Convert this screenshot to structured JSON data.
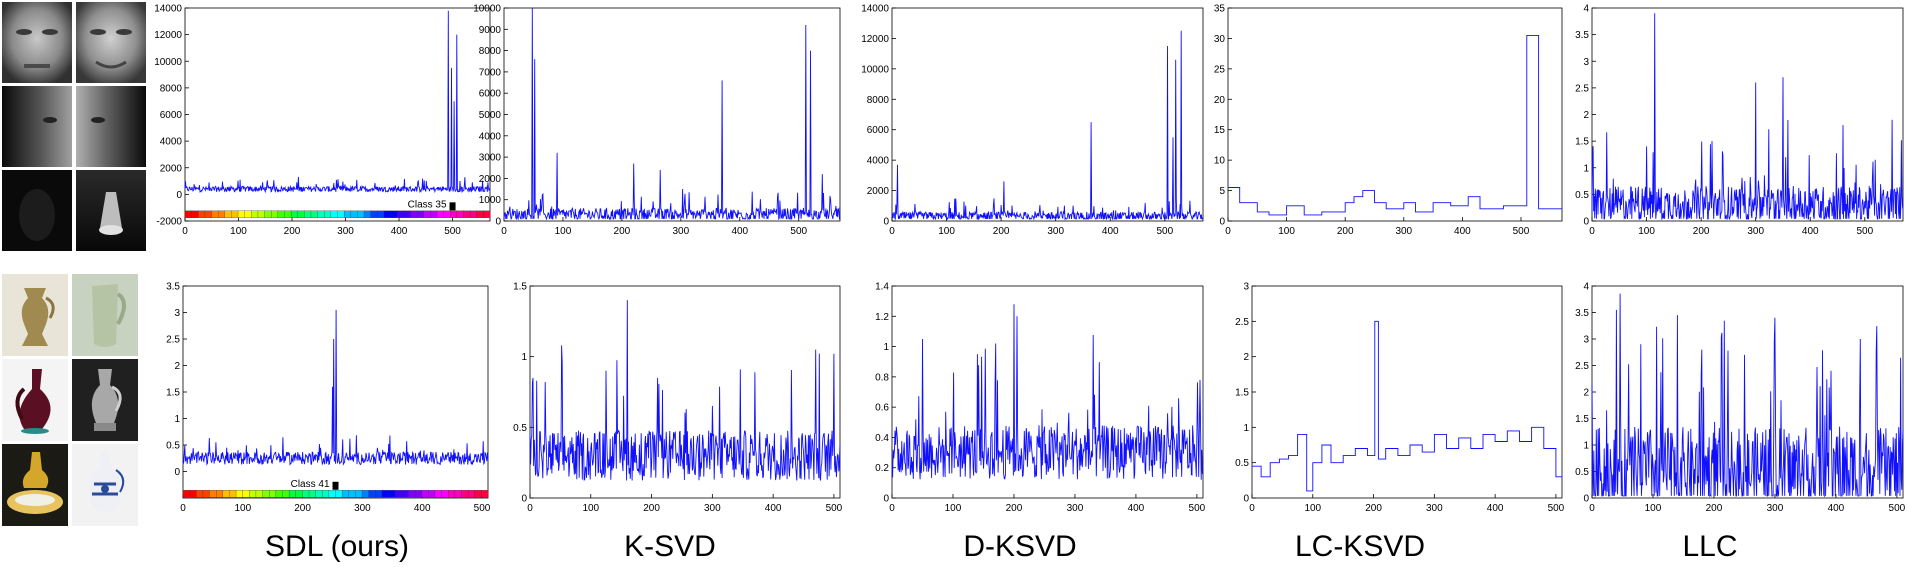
{
  "methods": [
    "SDL (ours)",
    "K-SVD",
    "D-KSVD",
    "LC-KSVD",
    "LLC"
  ],
  "chart_data": [
    {
      "type": "line",
      "row": "faces",
      "method": "SDL (ours)",
      "xlim": [
        0,
        570
      ],
      "ylim": [
        -2000,
        14000
      ],
      "yticks": [
        -2000,
        0,
        2000,
        4000,
        6000,
        8000,
        10000,
        12000,
        14000
      ],
      "ytick_labels": [
        "-2000",
        "0",
        "2000",
        "4000",
        "6000",
        "8000",
        "10000",
        "12000",
        "14000"
      ],
      "xticks": [
        0,
        100,
        200,
        300,
        400,
        500
      ],
      "xtick_labels": [
        "0",
        "100",
        "200",
        "300",
        "400",
        "500"
      ],
      "baseline": 400,
      "noise": 350,
      "spikes": [
        [
          492,
          13800
        ],
        [
          498,
          9500
        ],
        [
          508,
          12000
        ],
        [
          503,
          7000
        ]
      ],
      "colorbar": true,
      "class_label": "Class 35",
      "class_x": 500
    },
    {
      "type": "line",
      "row": "faces",
      "method": "K-SVD",
      "xlim": [
        0,
        570
      ],
      "ylim": [
        0,
        10000
      ],
      "yticks": [
        0,
        1000,
        2000,
        3000,
        4000,
        5000,
        6000,
        7000,
        8000,
        9000,
        10000
      ],
      "ytick_labels": [
        "0",
        "1000",
        "2000",
        "3000",
        "4000",
        "5000",
        "6000",
        "7000",
        "8000",
        "9000",
        "10000"
      ],
      "xticks": [
        0,
        100,
        200,
        300,
        400,
        500
      ],
      "xtick_labels": [
        "0",
        "100",
        "200",
        "300",
        "400",
        "500"
      ],
      "baseline": 300,
      "noise": 500,
      "spikes": [
        [
          48,
          10000
        ],
        [
          52,
          7600
        ],
        [
          90,
          3200
        ],
        [
          220,
          2700
        ],
        [
          265,
          2400
        ],
        [
          370,
          6600
        ],
        [
          512,
          9200
        ],
        [
          520,
          8000
        ],
        [
          540,
          2200
        ]
      ]
    },
    {
      "type": "line",
      "row": "faces",
      "method": "D-KSVD",
      "xlim": [
        0,
        570
      ],
      "ylim": [
        0,
        14000
      ],
      "yticks": [
        0,
        2000,
        4000,
        6000,
        8000,
        10000,
        12000,
        14000
      ],
      "ytick_labels": [
        "0",
        "2000",
        "4000",
        "6000",
        "8000",
        "10000",
        "12000",
        "14000"
      ],
      "xticks": [
        0,
        100,
        200,
        300,
        400,
        500
      ],
      "xtick_labels": [
        "0",
        "100",
        "200",
        "300",
        "400",
        "500"
      ],
      "baseline": 300,
      "noise": 500,
      "spikes": [
        [
          10,
          3700
        ],
        [
          205,
          2600
        ],
        [
          365,
          6500
        ],
        [
          505,
          11500
        ],
        [
          515,
          5500
        ],
        [
          520,
          10600
        ],
        [
          530,
          12500
        ]
      ]
    },
    {
      "type": "step",
      "row": "faces",
      "method": "LC-KSVD",
      "xlim": [
        0,
        570
      ],
      "ylim": [
        0,
        35
      ],
      "yticks": [
        0,
        5,
        10,
        15,
        20,
        25,
        30,
        35
      ],
      "ytick_labels": [
        "0",
        "5",
        "10",
        "15",
        "20",
        "25",
        "30",
        "35"
      ],
      "xticks": [
        0,
        100,
        200,
        300,
        400,
        500
      ],
      "xtick_labels": [
        "0",
        "100",
        "200",
        "300",
        "400",
        "500"
      ],
      "steps": [
        [
          0,
          5.5
        ],
        [
          20,
          3
        ],
        [
          50,
          1.5
        ],
        [
          70,
          1
        ],
        [
          100,
          2.5
        ],
        [
          130,
          1
        ],
        [
          160,
          1.5
        ],
        [
          200,
          3
        ],
        [
          215,
          4
        ],
        [
          230,
          5
        ],
        [
          250,
          3
        ],
        [
          270,
          2
        ],
        [
          300,
          3
        ],
        [
          320,
          1.5
        ],
        [
          350,
          3
        ],
        [
          380,
          2.5
        ],
        [
          410,
          4
        ],
        [
          430,
          2
        ],
        [
          470,
          2.5
        ],
        [
          510,
          30.5
        ],
        [
          530,
          2
        ],
        [
          570,
          2
        ]
      ]
    },
    {
      "type": "line",
      "row": "faces",
      "method": "LLC",
      "xlim": [
        0,
        570
      ],
      "ylim": [
        0,
        4
      ],
      "yticks": [
        0,
        0.5,
        1,
        1.5,
        2,
        2.5,
        3,
        3.5,
        4
      ],
      "ytick_labels": [
        "0",
        "0.5",
        "1",
        "1.5",
        "2",
        "2.5",
        "3",
        "3.5",
        "4"
      ],
      "xticks": [
        0,
        100,
        200,
        300,
        400,
        500
      ],
      "xtick_labels": [
        "0",
        "100",
        "200",
        "300",
        "400",
        "500"
      ],
      "baseline": 0.3,
      "noise": 0.6,
      "spikes": [
        [
          115,
          3.9
        ],
        [
          100,
          1.4
        ],
        [
          300,
          2.6
        ],
        [
          350,
          2.7
        ],
        [
          460,
          1.8
        ],
        [
          550,
          1.9
        ],
        [
          220,
          1.5
        ]
      ]
    },
    {
      "type": "line",
      "row": "vases",
      "method": "SDL (ours)",
      "xlim": [
        0,
        510
      ],
      "ylim": [
        -0.5,
        3.5
      ],
      "yticks": [
        0,
        0.5,
        1,
        1.5,
        2,
        2.5,
        3,
        3.5
      ],
      "ytick_labels": [
        "0",
        "0.5",
        "1",
        "1.5",
        "2",
        "2.5",
        "3",
        "3.5"
      ],
      "xticks": [
        0,
        100,
        200,
        300,
        400,
        500
      ],
      "xtick_labels": [
        "0",
        "100",
        "200",
        "300",
        "400",
        "500"
      ],
      "baseline": 0.25,
      "noise": 0.2,
      "spikes": [
        [
          252,
          2.5
        ],
        [
          256,
          3.05
        ],
        [
          250,
          1.6
        ]
      ],
      "colorbar": true,
      "class_label": "Class 41",
      "class_x": 255
    },
    {
      "type": "line",
      "row": "vases",
      "method": "K-SVD",
      "xlim": [
        0,
        510
      ],
      "ylim": [
        0,
        1.5
      ],
      "yticks": [
        0,
        0.5,
        1,
        1.5
      ],
      "ytick_labels": [
        "0",
        "0.5",
        "1",
        "1.5"
      ],
      "xticks": [
        0,
        100,
        200,
        300,
        400,
        500
      ],
      "xtick_labels": [
        "0",
        "100",
        "200",
        "300",
        "400",
        "500"
      ],
      "baseline": 0.3,
      "noise": 0.3,
      "spikes": [
        [
          160,
          1.4
        ],
        [
          125,
          0.9
        ],
        [
          210,
          0.85
        ],
        [
          470,
          1.05
        ],
        [
          500,
          1.02
        ],
        [
          5,
          0.85
        ]
      ]
    },
    {
      "type": "line",
      "row": "vases",
      "method": "D-KSVD",
      "xlim": [
        0,
        510
      ],
      "ylim": [
        0,
        1.4
      ],
      "yticks": [
        0,
        0.2,
        0.4,
        0.6,
        0.8,
        1,
        1.2,
        1.4
      ],
      "ytick_labels": [
        "0",
        "0.2",
        "0.4",
        "0.6",
        "0.8",
        "1",
        "1.2",
        "1.4"
      ],
      "xticks": [
        0,
        100,
        200,
        300,
        400,
        500
      ],
      "xtick_labels": [
        "0",
        "100",
        "200",
        "300",
        "400",
        "500"
      ],
      "baseline": 0.3,
      "noise": 0.3,
      "spikes": [
        [
          200,
          1.28
        ],
        [
          205,
          1.2
        ],
        [
          170,
          1.02
        ],
        [
          50,
          1.05
        ],
        [
          140,
          0.95
        ],
        [
          505,
          0.78
        ]
      ]
    },
    {
      "type": "step",
      "row": "vases",
      "method": "LC-KSVD",
      "xlim": [
        0,
        510
      ],
      "ylim": [
        0,
        3
      ],
      "yticks": [
        0,
        0.5,
        1,
        1.5,
        2,
        2.5,
        3
      ],
      "ytick_labels": [
        "0",
        "0.5",
        "1",
        "1.5",
        "2",
        "2.5",
        "3"
      ],
      "xticks": [
        0,
        100,
        200,
        300,
        400,
        500
      ],
      "xtick_labels": [
        "0",
        "100",
        "200",
        "300",
        "400",
        "500"
      ],
      "steps": [
        [
          0,
          0.45
        ],
        [
          15,
          0.3
        ],
        [
          30,
          0.5
        ],
        [
          45,
          0.55
        ],
        [
          60,
          0.6
        ],
        [
          75,
          0.9
        ],
        [
          90,
          0.1
        ],
        [
          100,
          0.5
        ],
        [
          115,
          0.75
        ],
        [
          130,
          0.5
        ],
        [
          150,
          0.6
        ],
        [
          170,
          0.7
        ],
        [
          190,
          0.6
        ],
        [
          202,
          2.5
        ],
        [
          208,
          0.55
        ],
        [
          220,
          0.7
        ],
        [
          240,
          0.6
        ],
        [
          260,
          0.75
        ],
        [
          280,
          0.65
        ],
        [
          300,
          0.9
        ],
        [
          320,
          0.7
        ],
        [
          340,
          0.85
        ],
        [
          360,
          0.7
        ],
        [
          380,
          0.9
        ],
        [
          400,
          0.8
        ],
        [
          420,
          0.95
        ],
        [
          440,
          0.8
        ],
        [
          460,
          1.0
        ],
        [
          480,
          0.7
        ],
        [
          500,
          0.3
        ],
        [
          510,
          0.3
        ]
      ]
    },
    {
      "type": "line",
      "row": "vases",
      "method": "LLC",
      "xlim": [
        0,
        510
      ],
      "ylim": [
        0,
        4
      ],
      "yticks": [
        0,
        0.5,
        1,
        1.5,
        2,
        2.5,
        3,
        3.5,
        4
      ],
      "ytick_labels": [
        "0",
        "0.5",
        "1",
        "1.5",
        "2",
        "2.5",
        "3",
        "3.5",
        "4"
      ],
      "xticks": [
        0,
        100,
        200,
        300,
        400,
        500
      ],
      "xtick_labels": [
        "0",
        "100",
        "200",
        "300",
        "400",
        "500"
      ],
      "baseline": 0.5,
      "noise": 1.4,
      "spikes": [
        [
          40,
          3.55
        ],
        [
          140,
          3.45
        ],
        [
          300,
          3.4
        ],
        [
          440,
          3.0
        ],
        [
          80,
          2.9
        ],
        [
          180,
          2.8
        ],
        [
          250,
          2.7
        ]
      ]
    }
  ]
}
